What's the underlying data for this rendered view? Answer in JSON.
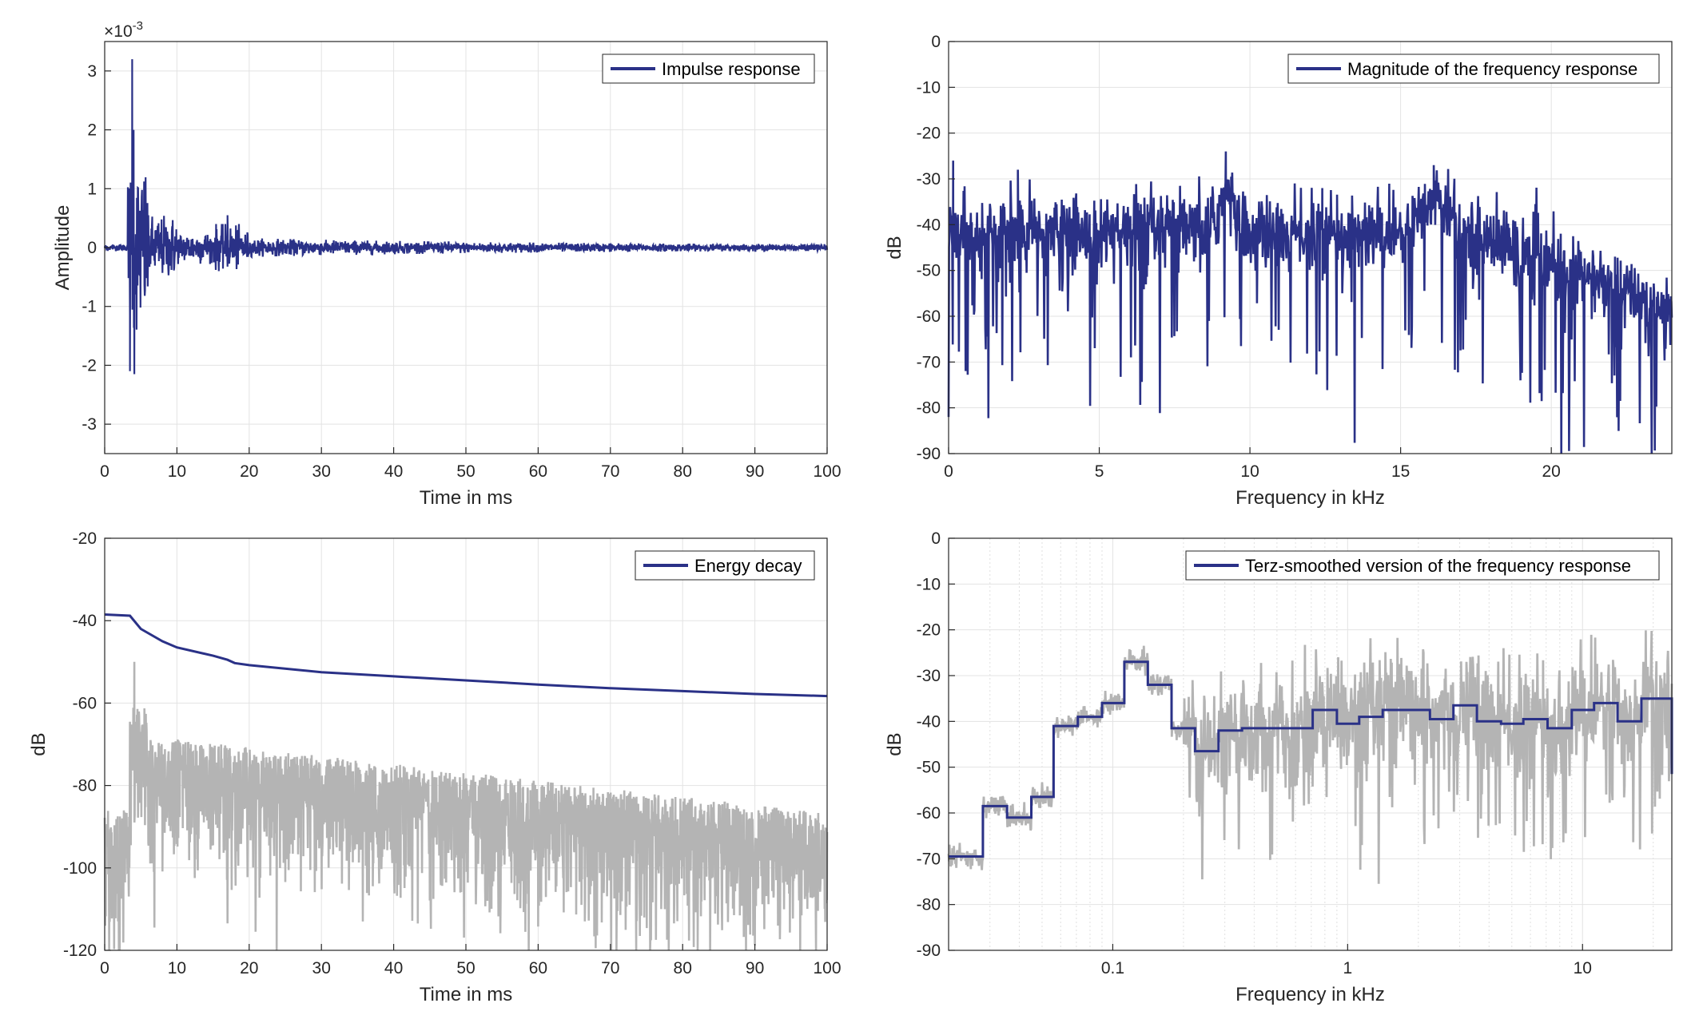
{
  "colors": {
    "primary": "#2a3187",
    "secondary": "#b4b4b4",
    "grid": "#e3e3e3",
    "axis": "#262626"
  },
  "chart_data": [
    {
      "type": "line",
      "series": [
        {
          "name": "Impulse response"
        }
      ],
      "legend": {
        "label": "Impulse response",
        "location": "top-right"
      },
      "xlabel": "Time in ms",
      "ylabel": "Amplitude",
      "exponent_label": "×10",
      "exponent_power": "-3",
      "xlim": [
        0,
        100
      ],
      "ylim": [
        -3.5,
        3.5
      ],
      "xticks": [
        0,
        10,
        20,
        30,
        40,
        50,
        60,
        70,
        80,
        90,
        100
      ],
      "xtick_labels": [
        "0",
        "10",
        "20",
        "30",
        "40",
        "50",
        "60",
        "70",
        "80",
        "90",
        "100"
      ],
      "yticks": [
        3,
        2,
        1,
        0,
        -1,
        -2,
        -3
      ],
      "ytick_labels": [
        "3",
        "2",
        "1",
        "0",
        "-1",
        "-2",
        "-3"
      ],
      "peaks": [
        {
          "x": 3.8,
          "y": 3.2
        },
        {
          "x": 4.0,
          "y": 2.0
        },
        {
          "x": 3.5,
          "y": -2.1
        },
        {
          "x": 4.1,
          "y": -2.15
        },
        {
          "x": 17.0,
          "y": 0.55
        }
      ],
      "grid": true
    },
    {
      "type": "line",
      "series": [
        {
          "name": "Magnitude of the frequency response"
        }
      ],
      "legend": {
        "label": "Magnitude of the frequency response",
        "location": "top-right"
      },
      "xlabel": "Frequency in kHz",
      "ylabel": "dB",
      "xlim": [
        0,
        24
      ],
      "ylim": [
        -90,
        0
      ],
      "xticks": [
        0,
        5,
        10,
        15,
        20
      ],
      "xtick_labels": [
        "0",
        "5",
        "10",
        "15",
        "20"
      ],
      "yticks": [
        0,
        -10,
        -20,
        -30,
        -40,
        -50,
        -60,
        -70,
        -80,
        -90
      ],
      "ytick_labels": [
        "0",
        "-10",
        "-20",
        "-30",
        "-40",
        "-50",
        "-60",
        "-70",
        "-80",
        "-90"
      ],
      "peaks": [
        {
          "x": 0.15,
          "y": -26
        },
        {
          "x": 2.3,
          "y": -28
        },
        {
          "x": 9.2,
          "y": -24
        },
        {
          "x": 12.4,
          "y": -32
        },
        {
          "x": 16.1,
          "y": -27
        }
      ],
      "grid": true
    },
    {
      "type": "line",
      "series": [
        {
          "name": "Energy decay",
          "x": [
            0,
            3.5,
            5,
            8,
            10,
            15,
            17,
            18,
            20,
            30,
            40,
            50,
            60,
            70,
            80,
            90,
            100
          ],
          "y": [
            -38.5,
            -38.8,
            -42,
            -45,
            -46.5,
            -48.5,
            -49.5,
            -50.3,
            -50.8,
            -52.5,
            -53.5,
            -54.5,
            -55.5,
            -56.4,
            -57.1,
            -57.8,
            -58.3
          ]
        },
        {
          "name": ""
        }
      ],
      "legend": {
        "label": "Energy decay",
        "location": "top-right"
      },
      "xlabel": "Time in ms",
      "ylabel": "dB",
      "xlim": [
        0,
        100
      ],
      "ylim": [
        -120,
        -20
      ],
      "xticks": [
        0,
        10,
        20,
        30,
        40,
        50,
        60,
        70,
        80,
        90,
        100
      ],
      "xtick_labels": [
        "0",
        "10",
        "20",
        "30",
        "40",
        "50",
        "60",
        "70",
        "80",
        "90",
        "100"
      ],
      "yticks": [
        -20,
        -40,
        -60,
        -80,
        -100,
        -120
      ],
      "ytick_labels": [
        "-20",
        "-40",
        "-60",
        "-80",
        "-100",
        "-120"
      ],
      "grid": true
    },
    {
      "type": "line",
      "xscale": "log",
      "series": [
        {
          "name": "Terz-smoothed version of the frequency response",
          "x_edges": [
            0.02,
            0.028,
            0.0355,
            0.045,
            0.056,
            0.071,
            0.09,
            0.112,
            0.141,
            0.178,
            0.224,
            0.282,
            0.355,
            0.5,
            0.71,
            0.9,
            1.12,
            1.41,
            1.78,
            2.24,
            2.82,
            3.55,
            4.5,
            5.6,
            7.1,
            9.0,
            11.2,
            14.1,
            17.8,
            24
          ],
          "y": [
            -69.5,
            -58.5,
            -61,
            -56.5,
            -41,
            -39,
            -36,
            -27,
            -32,
            -41.5,
            -46.5,
            -42,
            -41.5,
            -41.5,
            -37.5,
            -40.5,
            -39,
            -37.5,
            -37.5,
            -39.5,
            -36.5,
            -40,
            -40.5,
            -39.5,
            -41.5,
            -37.5,
            -36,
            -40,
            -35,
            -51.5
          ]
        },
        {
          "name": ""
        }
      ],
      "legend": {
        "label": "Terz-smoothed version of the frequency response",
        "location": "top-right"
      },
      "xlabel": "Frequency in kHz",
      "ylabel": "dB",
      "xlim": [
        0.02,
        24
      ],
      "ylim": [
        -90,
        0
      ],
      "xticks": [
        0.1,
        1,
        10
      ],
      "xtick_labels": [
        "0.1",
        "1",
        "10"
      ],
      "yticks": [
        0,
        -10,
        -20,
        -30,
        -40,
        -50,
        -60,
        -70,
        -80,
        -90
      ],
      "ytick_labels": [
        "0",
        "-10",
        "-20",
        "-30",
        "-40",
        "-50",
        "-60",
        "-70",
        "-80",
        "-90"
      ],
      "grid": true
    }
  ]
}
